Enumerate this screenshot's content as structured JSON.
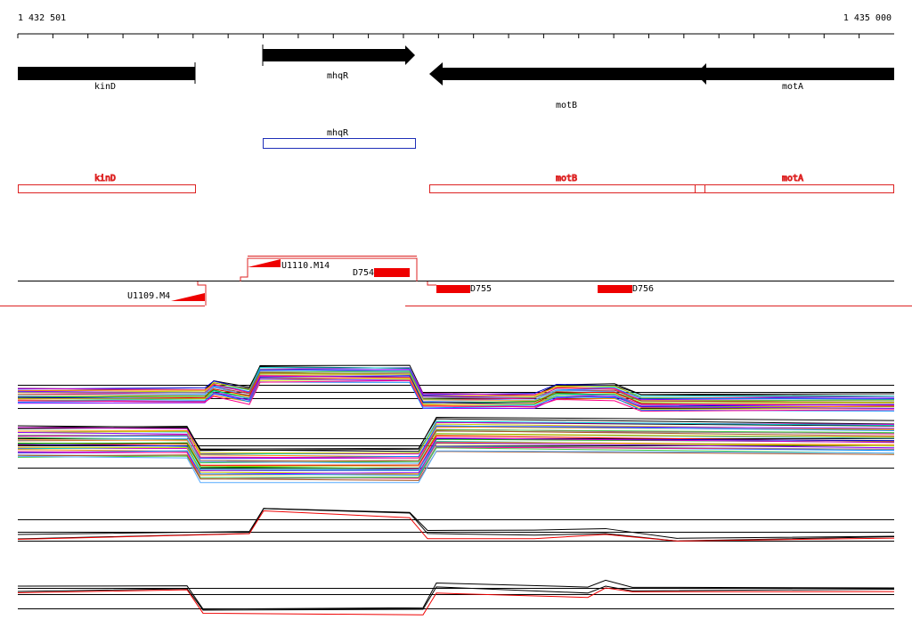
{
  "ruler": {
    "start": "1 432 501",
    "end": "1 435 000"
  },
  "genes": [
    {
      "label": "kinD"
    },
    {
      "label": "mhqR"
    },
    {
      "label": "motB"
    },
    {
      "label": "motA"
    }
  ],
  "transcripts": [
    {
      "label": "mhqR"
    }
  ],
  "cds": [
    {
      "label": "kinD"
    },
    {
      "label": "motB"
    },
    {
      "label": "motA"
    }
  ],
  "features": [
    {
      "label": "U1110.M14"
    },
    {
      "label": "D754"
    },
    {
      "label": "U1109.M4"
    },
    {
      "label": "D755"
    },
    {
      "label": "D756"
    }
  ]
}
